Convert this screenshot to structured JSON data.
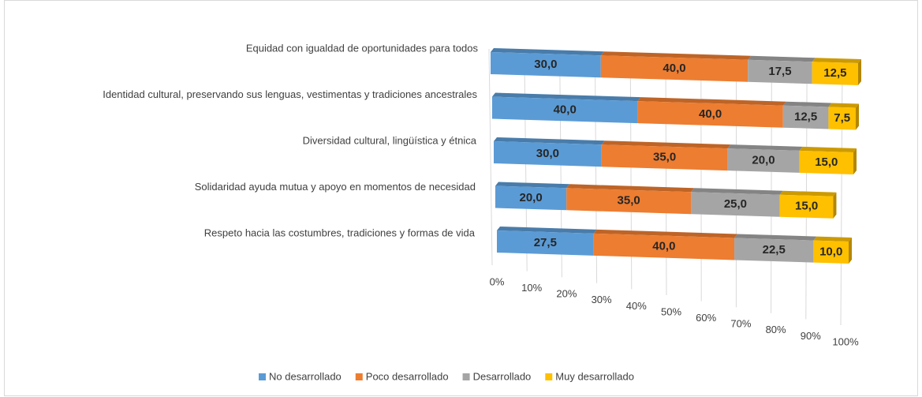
{
  "chart_data": {
    "type": "bar3d_stacked_horizontal",
    "categories": [
      "Equidad con igualdad de oportunidades para todos",
      "Identidad cultural, preservando sus lenguas, vestimentas y tradiciones ancestrales",
      "Diversidad cultural, lingüística y étnica",
      "Solidaridad ayuda mutua y apoyo en momentos de necesidad",
      "Respeto hacia las costumbres, tradiciones y formas de vida"
    ],
    "series": [
      {
        "name": "No desarrollado",
        "color": "#5b9bd5",
        "values": [
          30,
          40,
          30,
          20,
          27.5
        ],
        "value_labels": [
          "30,0",
          "40,0",
          "30,0",
          "20,0",
          "27,5"
        ]
      },
      {
        "name": "Poco desarrollado",
        "color": "#ed7d31",
        "values": [
          40,
          40,
          35,
          35,
          40
        ],
        "value_labels": [
          "40,0",
          "40,0",
          "35,0",
          "35,0",
          "40,0"
        ]
      },
      {
        "name": "Desarrollado",
        "color": "#a5a5a5",
        "values": [
          17.5,
          12.5,
          20,
          25,
          22.5
        ],
        "value_labels": [
          "17,5",
          "12,5",
          "20,0",
          "25,0",
          "22,5"
        ]
      },
      {
        "name": "Muy desarrollado",
        "color": "#ffc000",
        "values": [
          12.5,
          7.5,
          15,
          15,
          10
        ],
        "value_labels": [
          "12,5",
          "7,5",
          "15,0",
          "15,0",
          "10,0"
        ]
      }
    ],
    "xlim": [
      0,
      100
    ],
    "xticks": [
      {
        "value": 0,
        "label": "0%"
      },
      {
        "value": 10,
        "label": "10%"
      },
      {
        "value": 20,
        "label": "20%"
      },
      {
        "value": 30,
        "label": "30%"
      },
      {
        "value": 40,
        "label": "40%"
      },
      {
        "value": 50,
        "label": "50%"
      },
      {
        "value": 60,
        "label": "60%"
      },
      {
        "value": 70,
        "label": "70%"
      },
      {
        "value": 80,
        "label": "80%"
      },
      {
        "value": 90,
        "label": "90%"
      },
      {
        "value": 100,
        "label": "100%"
      }
    ],
    "grid": true,
    "legend": "bottom"
  }
}
